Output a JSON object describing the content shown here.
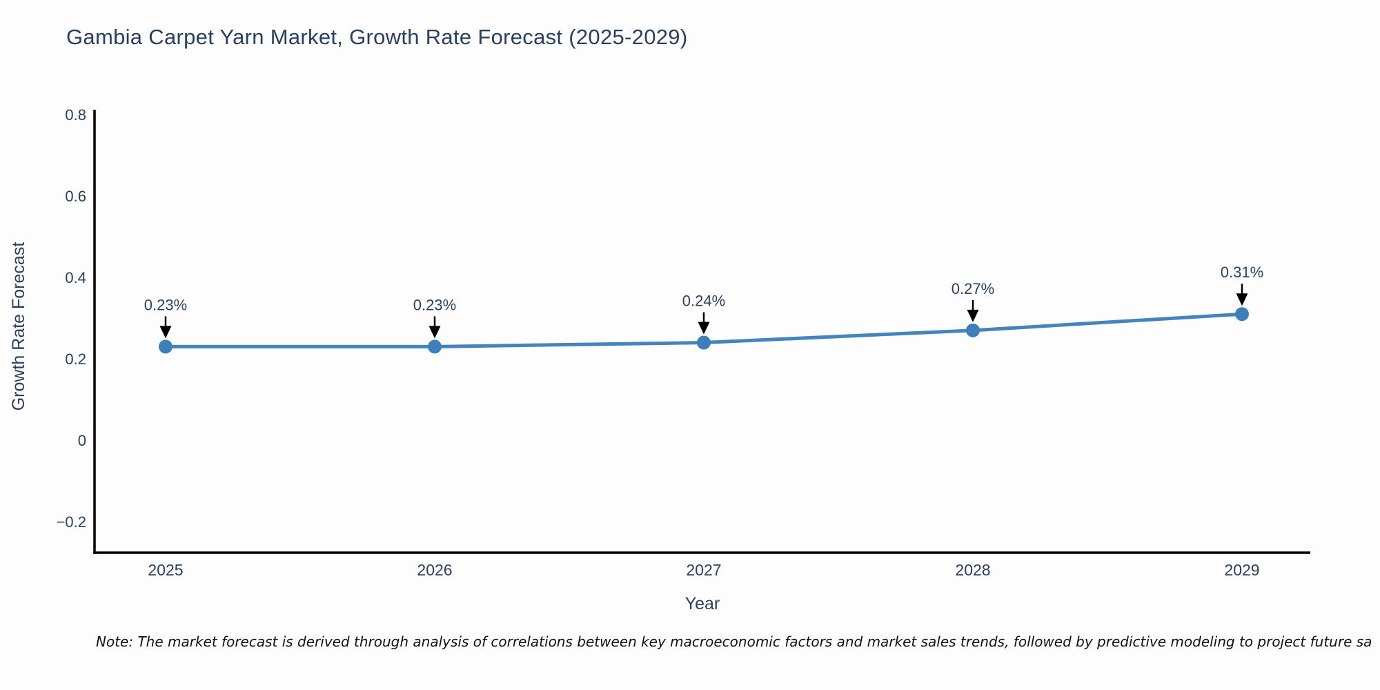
{
  "note": "Note: The market forecast is derived through analysis of correlations between key macroeconomic factors and market sales trends, followed by predictive modeling to project future sa",
  "chart_data": {
    "type": "line",
    "title": "Gambia Carpet Yarn Market, Growth Rate Forecast (2025-2029)",
    "xlabel": "Year",
    "ylabel": "Growth Rate Forecast",
    "x": [
      "2025",
      "2026",
      "2027",
      "2028",
      "2029"
    ],
    "y": [
      0.23,
      0.23,
      0.24,
      0.27,
      0.31
    ],
    "point_labels": [
      "0.23%",
      "0.23%",
      "0.24%",
      "0.27%",
      "0.31%"
    ],
    "yticks": [
      0.8,
      0.6,
      0.4,
      0.2,
      0,
      -0.2
    ],
    "ytick_labels": [
      "0.8",
      "0.6",
      "0.4",
      "0.2",
      "0",
      "−0.2"
    ],
    "ylim": [
      -0.276,
      0.812
    ],
    "grid": false,
    "legend_position": "none",
    "colors": {
      "line": "#4284bd",
      "marker": "#3c7fba",
      "axis": "#000000",
      "tick_text": "#2a3f5f",
      "annotation_text": "#2a3f5f",
      "arrow": "#000000"
    }
  }
}
